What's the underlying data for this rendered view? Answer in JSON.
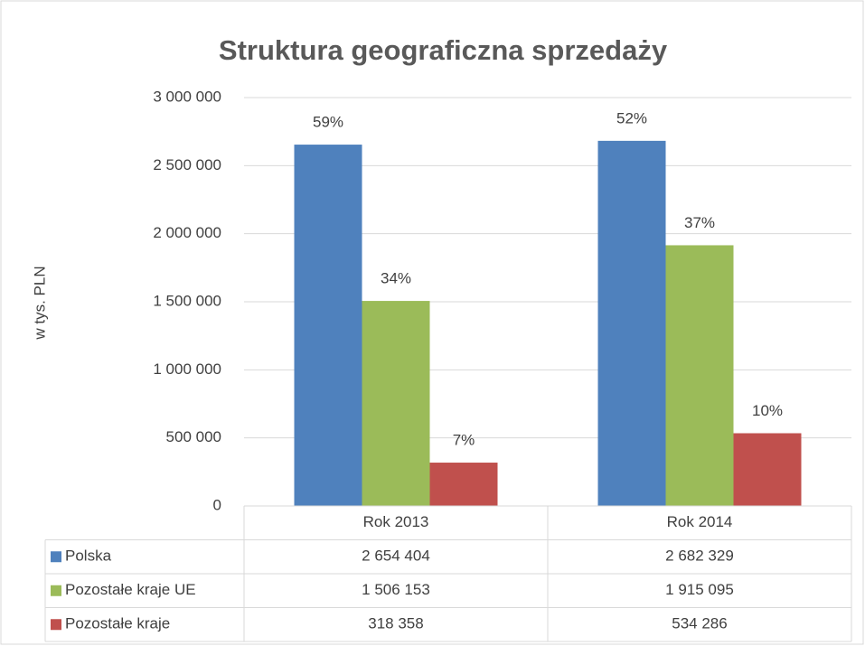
{
  "chart_data": {
    "type": "bar",
    "title": "Struktura geograficzna sprzedaży",
    "y_label": "w tys. PLN",
    "categories": [
      "Rok 2013",
      "Rok 2014"
    ],
    "series": [
      {
        "name": "Polska",
        "color": "#4f81bd",
        "values": [
          2654404,
          2682329
        ],
        "value_labels": [
          "2 654 404",
          "2 682 329"
        ],
        "data_labels": [
          "59%",
          "52%"
        ]
      },
      {
        "name": "Pozostałe kraje UE",
        "color": "#9bbb59",
        "values": [
          1506153,
          1915095
        ],
        "value_labels": [
          "1 506 153",
          "1 915 095"
        ],
        "data_labels": [
          "34%",
          "37%"
        ]
      },
      {
        "name": "Pozostałe kraje",
        "color": "#c0504d",
        "values": [
          318358,
          534286
        ],
        "value_labels": [
          "318 358",
          "534 286"
        ],
        "data_labels": [
          "7%",
          "10%"
        ]
      }
    ],
    "ylim": [
      0,
      3000000
    ],
    "yticks": [
      0,
      {
        "value": 500000,
        "label": "500 000"
      },
      {
        "value": 1000000,
        "label": "1 000 000"
      },
      {
        "value": 1500000,
        "label": "1 500 000"
      },
      {
        "value": 2000000,
        "label": "2 000 000"
      },
      {
        "value": 2500000,
        "label": "2 500 000"
      },
      {
        "value": 3000000,
        "label": "3 000 000"
      }
    ],
    "grid": true
  }
}
